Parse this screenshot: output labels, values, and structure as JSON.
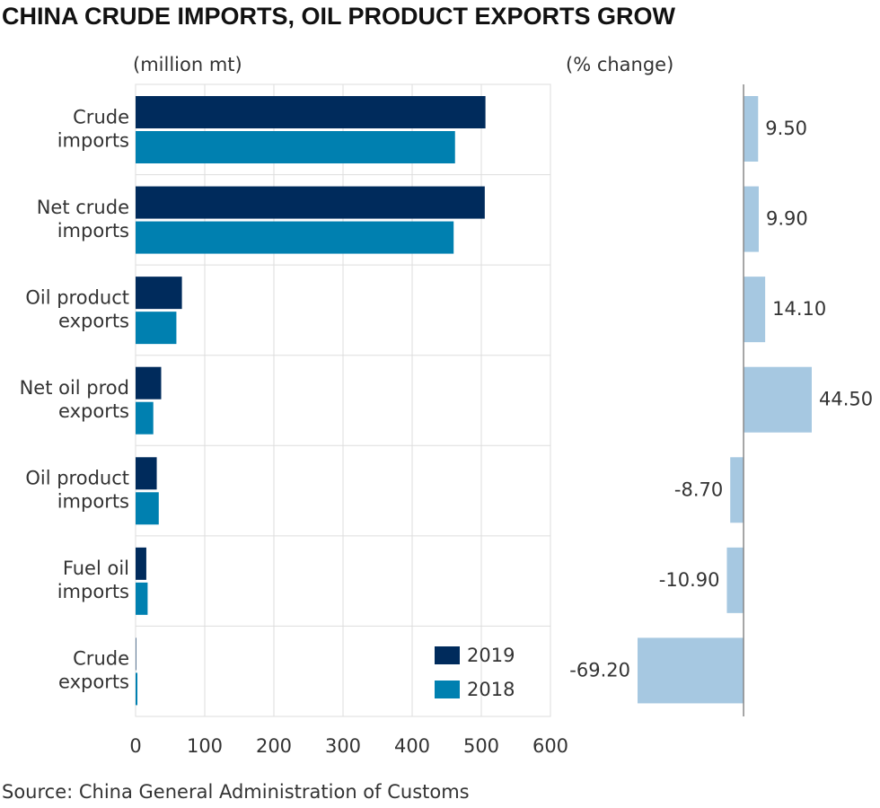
{
  "title": "CHINA CRUDE IMPORTS, OIL PRODUCT EXPORTS GROW",
  "source": "Source: China General Administration of Customs",
  "chart_data": [
    {
      "type": "hbar",
      "axis_label": "(million mt)",
      "categories": [
        "Crude\nimports",
        "Net crude\nimports",
        "Oil product\nexports",
        "Net oil prod\nexports",
        "Oil product\nimports",
        "Fuel oil\nimports",
        "Crude\nexports"
      ],
      "series": [
        {
          "name": "2019",
          "color": "#002b5c",
          "values": [
            506,
            505,
            67,
            37,
            30.6,
            15.5,
            0.8
          ]
        },
        {
          "name": "2018",
          "color": "#0080b0",
          "values": [
            462,
            460,
            59,
            25.6,
            33.5,
            17.4,
            2.6
          ]
        }
      ],
      "xlim": [
        0,
        600
      ],
      "xticks": [
        0,
        100,
        200,
        300,
        400,
        500,
        600
      ],
      "grid": true,
      "legend": "lower right"
    },
    {
      "type": "hbar-change",
      "axis_label": "(% change)",
      "color": "#a6c8e1",
      "values": [
        9.5,
        9.9,
        14.1,
        44.5,
        -8.7,
        -10.9,
        -69.2
      ],
      "value_labels": [
        "9.50",
        "9.90",
        "14.10",
        "44.50",
        "-8.70",
        "-10.90",
        "-69.20"
      ]
    }
  ]
}
